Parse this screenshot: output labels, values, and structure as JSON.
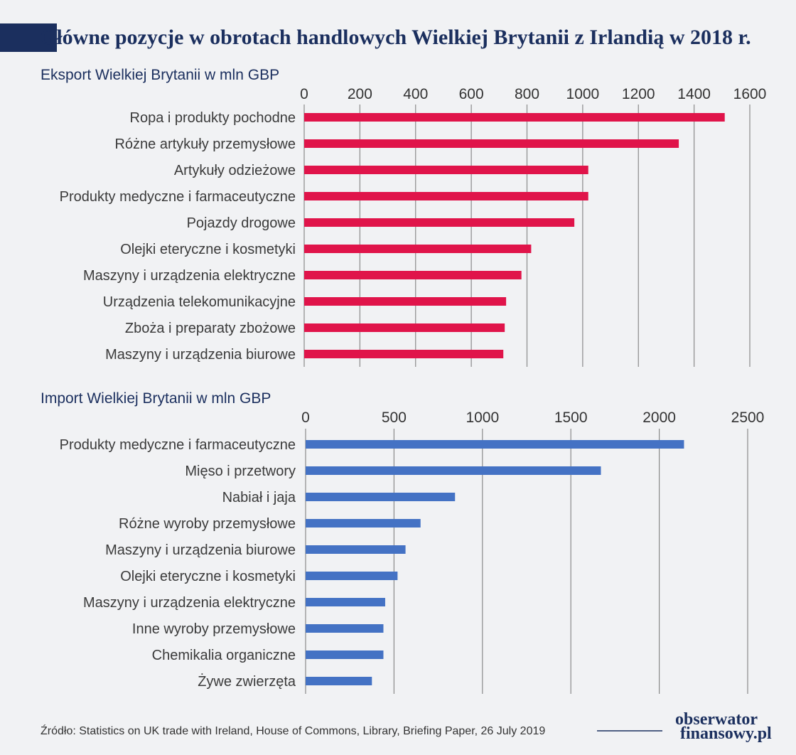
{
  "title": "Główne pozycje w obrotach handlowych Wielkiej Brytanii z Irlandią w 2018 r.",
  "source": "Źródło: Statistics on UK trade with Ireland, House of Commons, Library, Briefing Paper, 26 July 2019",
  "logo": {
    "line1": "obserwator",
    "line2": "finansowy.pl"
  },
  "colors": {
    "export": "#e0144a",
    "import": "#4472c4",
    "title": "#1b2f5e"
  },
  "chart_data": [
    {
      "type": "bar",
      "orientation": "horizontal",
      "subtitle": "Eksport Wielkiej Brytanii w mln GBP",
      "categories": [
        "Ropa i produkty pochodne",
        "Różne artykuły przemysłowe",
        "Artykuły odzieżowe",
        "Produkty medyczne i farmaceutyczne",
        "Pojazdy drogowe",
        "Olejki eteryczne i kosmetyki",
        "Maszyny i urządzenia elektryczne",
        "Urządzenia telekomunikacyjne",
        "Zboża i preparaty zbożowe",
        "Maszyny i urządzenia biurowe"
      ],
      "values": [
        1510,
        1345,
        1020,
        1020,
        970,
        815,
        780,
        725,
        720,
        715
      ],
      "xlim": [
        0,
        1600
      ],
      "ticks": [
        0,
        200,
        400,
        600,
        800,
        1000,
        1200,
        1400,
        1600
      ],
      "axis_position": "top",
      "grid": true
    },
    {
      "type": "bar",
      "orientation": "horizontal",
      "subtitle": "Import Wielkiej Brytanii w mln GBP",
      "categories": [
        "Produkty medyczne i farmaceutyczne",
        "Mięso i przetwory",
        "Nabiał i jaja",
        "Różne wyroby przemysłowe",
        "Maszyny i urządzenia biurowe",
        "Olejki eteryczne i kosmetyki",
        "Maszyny i urządzenia elektryczne",
        "Inne wyroby przemysłowe",
        "Chemikalia organiczne",
        "Żywe zwierzęta"
      ],
      "values": [
        2140,
        1670,
        845,
        650,
        565,
        520,
        450,
        440,
        440,
        375
      ],
      "xlim": [
        0,
        2500
      ],
      "ticks": [
        0,
        500,
        1000,
        1500,
        2000,
        2500
      ],
      "axis_position": "top",
      "grid": true
    }
  ]
}
